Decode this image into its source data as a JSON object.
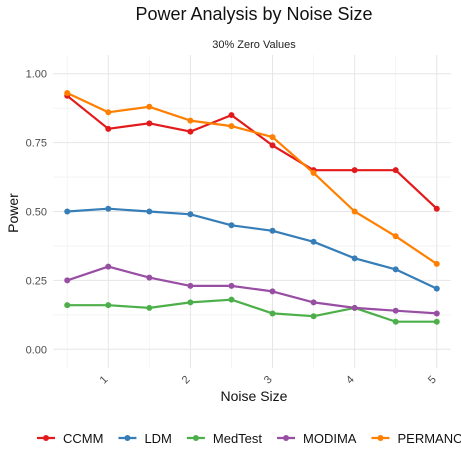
{
  "chart_data": {
    "type": "line",
    "title": "Power Analysis by Noise Size",
    "subtitle": "30% Zero Values",
    "xlabel": "Noise Size",
    "ylabel": "Power",
    "x": [
      0.5,
      1,
      1.5,
      2,
      2.5,
      3,
      3.5,
      4,
      4.5,
      5
    ],
    "xlim": [
      0.5,
      5
    ],
    "x_ticks": [
      1,
      2,
      3,
      4,
      5
    ],
    "x_tick_labels": [
      "1",
      "2",
      "3",
      "4",
      "5"
    ],
    "ylim": [
      0,
      1
    ],
    "y_ticks": [
      0,
      0.25,
      0.5,
      0.75,
      1
    ],
    "y_tick_labels": [
      "0.00",
      "0.25",
      "0.50",
      "0.75",
      "1.00"
    ],
    "grid": true,
    "legend_position": "bottom",
    "series": [
      {
        "name": "CCMM",
        "color": "#e31a1c",
        "values": [
          0.92,
          0.8,
          0.82,
          0.79,
          0.85,
          0.74,
          0.65,
          0.65,
          0.65,
          0.51
        ]
      },
      {
        "name": "LDM",
        "color": "#377eb8",
        "values": [
          0.5,
          0.51,
          0.5,
          0.49,
          0.45,
          0.43,
          0.39,
          0.33,
          0.29,
          0.22
        ]
      },
      {
        "name": "MedTest",
        "color": "#4daf4a",
        "values": [
          0.16,
          0.16,
          0.15,
          0.17,
          0.18,
          0.13,
          0.12,
          0.15,
          0.1,
          0.1
        ]
      },
      {
        "name": "MODIMA",
        "color": "#984ea3",
        "values": [
          0.25,
          0.3,
          0.26,
          0.23,
          0.23,
          0.21,
          0.17,
          0.15,
          0.14,
          0.13
        ]
      },
      {
        "name": "PERMANOVA",
        "color": "#ff7f00",
        "values": [
          0.93,
          0.86,
          0.88,
          0.83,
          0.81,
          0.77,
          0.64,
          0.5,
          0.41,
          0.31
        ]
      }
    ]
  }
}
